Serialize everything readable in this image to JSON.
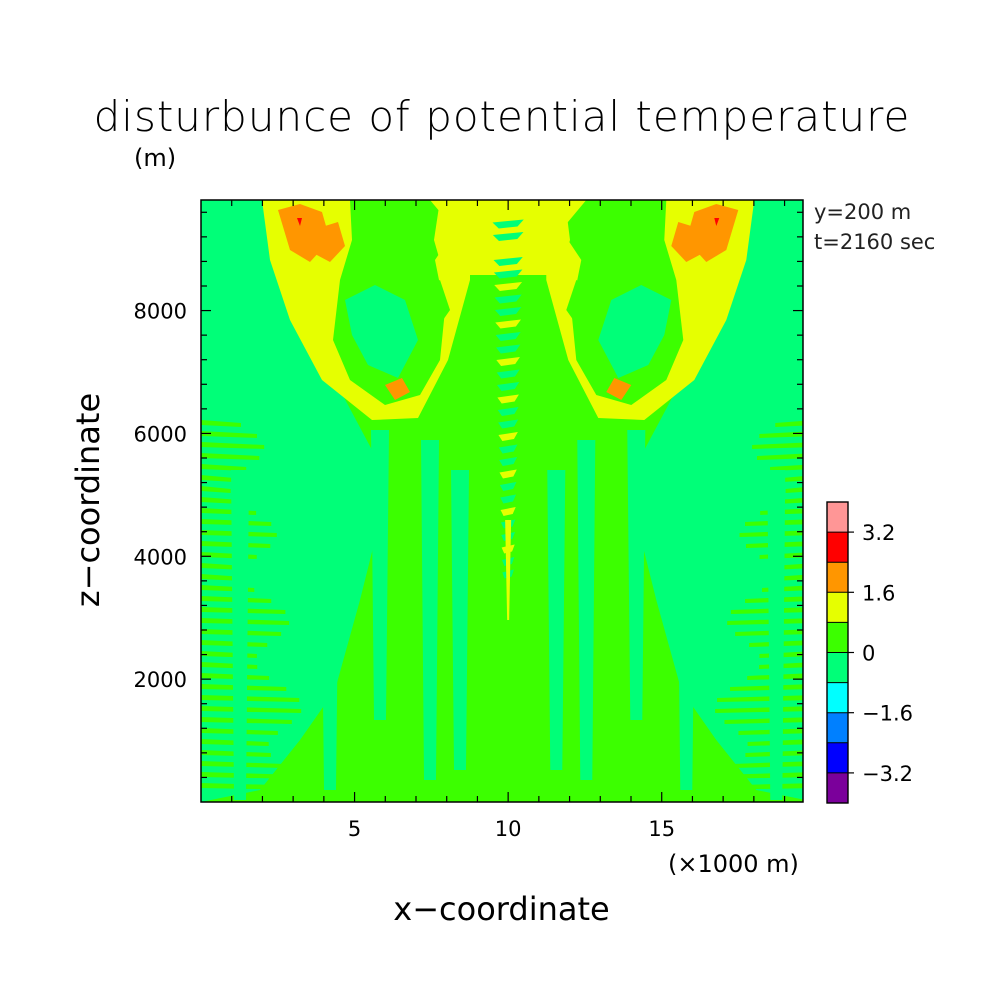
{
  "chart_data": {
    "type": "heatmap",
    "title": "disturbunce of potential temperature",
    "xlabel": "x−coordinate",
    "ylabel": "z−coordinate",
    "x_unit": "(×1000 m)",
    "z_unit": "(m)",
    "annotations": [
      "y=200 m",
      "t=2160 sec"
    ],
    "xlim": [
      0,
      19.6
    ],
    "ylim": [
      0,
      9800
    ],
    "x_ticks": [
      {
        "value": 5,
        "label": "5"
      },
      {
        "value": 10,
        "label": "10"
      },
      {
        "value": 15,
        "label": "15"
      }
    ],
    "y_ticks": [
      {
        "value": 2000,
        "label": "2000"
      },
      {
        "value": 4000,
        "label": "4000"
      },
      {
        "value": 6000,
        "label": "6000"
      },
      {
        "value": 8000,
        "label": "8000"
      }
    ],
    "colorbar": {
      "levels": [
        {
          "color": "#7b009b"
        },
        {
          "color": "#0000ff"
        },
        {
          "color": "#0080ff"
        },
        {
          "color": "#00ffff"
        },
        {
          "color": "#00ff78"
        },
        {
          "color": "#3cff00"
        },
        {
          "color": "#e6ff00"
        },
        {
          "color": "#ff9600"
        },
        {
          "color": "#ff0000"
        },
        {
          "color": "#ff9696"
        }
      ],
      "tick_labels": [
        "−3.2",
        "−1.6",
        "0",
        "1.6",
        "3.2"
      ]
    },
    "grid": false
  }
}
